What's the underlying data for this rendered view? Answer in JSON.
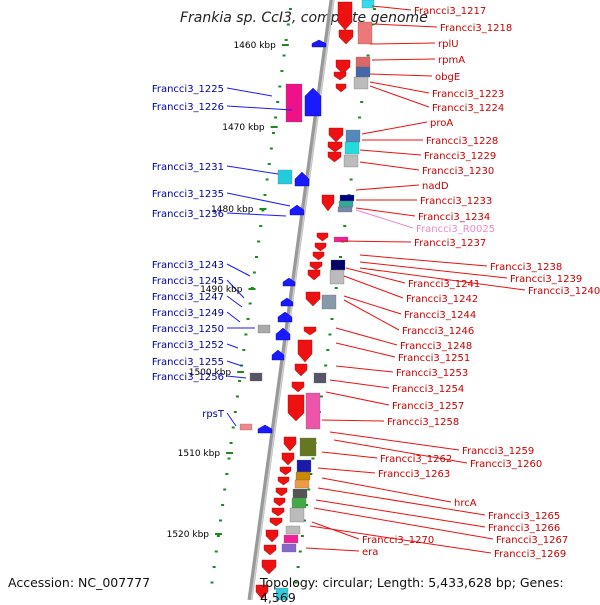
{
  "title": "Frankia sp. CcI3, complete genome",
  "footer": {
    "accession": "Accession: NC_007777",
    "summary": "Topology: circular; Length: 5,433,628 bp; Genes: 4,569"
  },
  "colors": {
    "forward_gene": "#1a1aff",
    "reverse_gene": "#ee1111",
    "forward_label": "#0000aa",
    "reverse_label": "#cc0000",
    "rna_label": "#ee88cc",
    "backbone": "#999999",
    "tick": "#1d8a1d"
  },
  "scale_labels": [
    "1460 kbp",
    "1470 kbp",
    "1480 kbp",
    "1490 kbp",
    "1500 kbp",
    "1510 kbp",
    "1520 kbp"
  ],
  "left_labels": [
    "Francci3_1225",
    "Francci3_1226",
    "Francci3_1231",
    "Francci3_1235",
    "Francci3_1236",
    "Francci3_1243",
    "Francci3_1245",
    "Francci3_1247",
    "Francci3_1249",
    "Francci3_1250",
    "Francci3_1252",
    "Francci3_1255",
    "Francci3_1256",
    "rpsT"
  ],
  "right_labels": [
    "Francci3_1217",
    "Francci3_1218",
    "rplU",
    "rpmA",
    "obgE",
    "Francci3_1223",
    "Francci3_1224",
    "proA",
    "Francci3_1228",
    "Francci3_1229",
    "Francci3_1230",
    "nadD",
    "Francci3_1233",
    "Francci3_1234",
    "Francci3_R0025",
    "Francci3_1237",
    "Francci3_1238",
    "Francci3_1239",
    "Francci3_1240",
    "Francci3_1241",
    "Francci3_1242",
    "Francci3_1244",
    "Francci3_1246",
    "Francci3_1248",
    "Francci3_1251",
    "Francci3_1253",
    "Francci3_1254",
    "Francci3_1257",
    "Francci3_1258",
    "Francci3_1259",
    "Francci3_1260",
    "Francci3_1262",
    "Francci3_1263",
    "hrcA",
    "Francci3_1265",
    "Francci3_1266",
    "Francci3_1267",
    "Francci3_1270",
    "Francci3_1269",
    "era"
  ]
}
